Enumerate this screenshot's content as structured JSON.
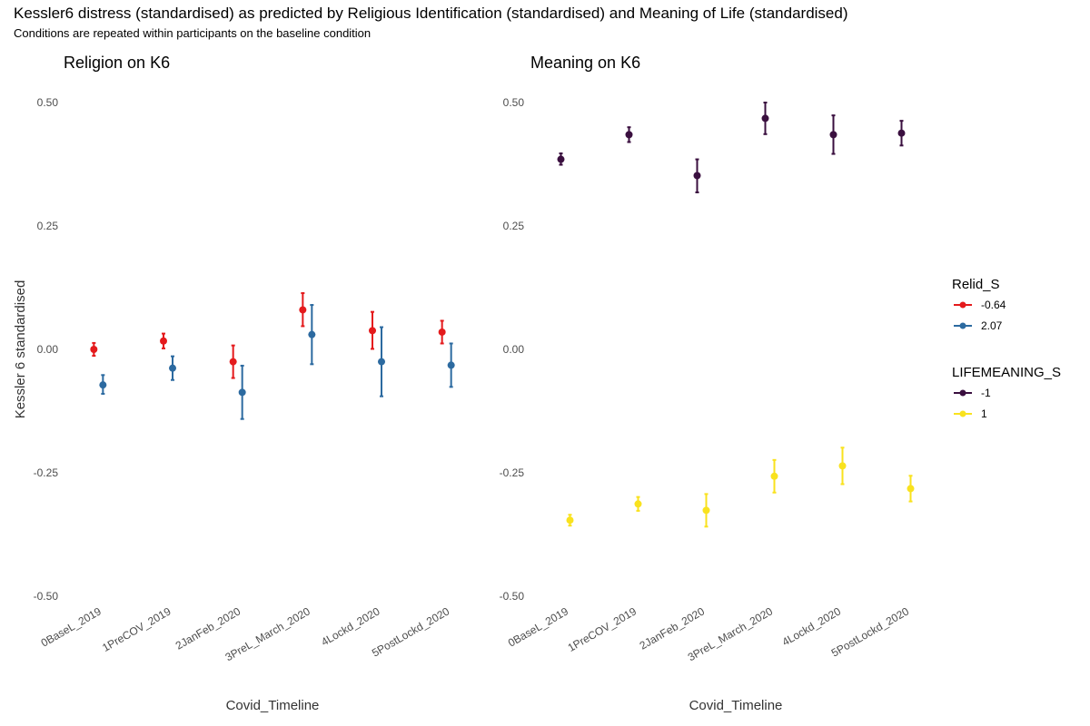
{
  "title": "Kessler6 distress (standardised) as predicted by Religious Identification (standardised) and Meaning of Life (standardised)",
  "subtitle": "Conditions are repeated within participants on the baseline condition",
  "chart_data": [
    {
      "type": "scatter",
      "panel_title": "Religion on K6",
      "xlabel": "Covid_Timeline",
      "ylabel": "Kessler 6 standardised",
      "ylim": [
        -0.5,
        0.5
      ],
      "yticks": [
        "-0.50",
        "-0.25",
        "0.00",
        "0.25",
        "0.50"
      ],
      "categories": [
        "0BaseL_2019",
        "1PreCOV_2019",
        "2JanFeb_2020",
        "3PreL_March_2020",
        "4Lockd_2020",
        "5PostLockd_2020"
      ],
      "grid": false,
      "error_bars": true,
      "legend_title": "Relid_S",
      "series": [
        {
          "name": "-0.64",
          "color": "#E41A1C",
          "values": [
            0.0,
            0.017,
            -0.025,
            0.08,
            0.038,
            0.035
          ],
          "lower": [
            -0.013,
            0.002,
            -0.058,
            0.047,
            0.001,
            0.012
          ],
          "upper": [
            0.013,
            0.032,
            0.008,
            0.114,
            0.076,
            0.058
          ]
        },
        {
          "name": "2.07",
          "color": "#2C6AA0",
          "values": [
            -0.072,
            -0.038,
            -0.087,
            0.03,
            -0.025,
            -0.032
          ],
          "lower": [
            -0.09,
            -0.062,
            -0.141,
            -0.03,
            -0.095,
            -0.076
          ],
          "upper": [
            -0.052,
            -0.014,
            -0.033,
            0.09,
            0.045,
            0.012
          ]
        }
      ]
    },
    {
      "type": "scatter",
      "panel_title": "Meaning on K6",
      "xlabel": "Covid_Timeline",
      "ylim": [
        -0.5,
        0.5
      ],
      "yticks": [
        "-0.50",
        "-0.25",
        "0.00",
        "0.25",
        "0.50"
      ],
      "categories": [
        "0BaseL_2019",
        "1PreCOV_2019",
        "2JanFeb_2020",
        "3PreL_March_2020",
        "4Lockd_2020",
        "5PostLockd_2020"
      ],
      "grid": false,
      "error_bars": true,
      "legend_title": "LIFEMEANING_S",
      "series": [
        {
          "name": "-1",
          "color": "#3A0F3F",
          "values": [
            0.385,
            0.435,
            0.352,
            0.468,
            0.435,
            0.438
          ],
          "lower": [
            0.374,
            0.42,
            0.318,
            0.436,
            0.396,
            0.413
          ],
          "upper": [
            0.397,
            0.45,
            0.385,
            0.5,
            0.474,
            0.463
          ]
        },
        {
          "name": "1",
          "color": "#F9E21E",
          "values": [
            -0.346,
            -0.313,
            -0.326,
            -0.257,
            -0.236,
            -0.282
          ],
          "lower": [
            -0.357,
            -0.327,
            -0.359,
            -0.29,
            -0.273,
            -0.308
          ],
          "upper": [
            -0.335,
            -0.299,
            -0.293,
            -0.224,
            -0.199,
            -0.256
          ]
        }
      ]
    }
  ]
}
